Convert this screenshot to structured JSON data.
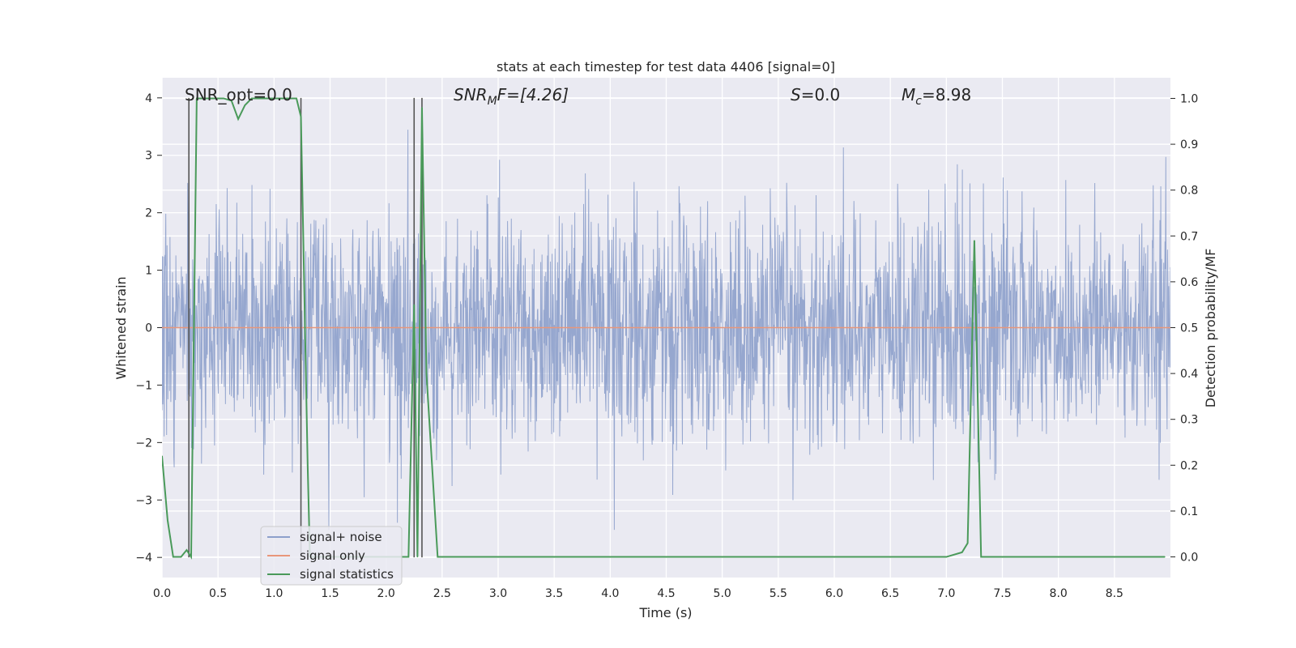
{
  "chart_data": {
    "type": "line",
    "title": "stats at each timestep for test data 4406 [signal=0]",
    "xlabel": "Time (s)",
    "ylabel": "Whitened strain",
    "y2label": "Detection probability/MF",
    "xlim": [
      0.0,
      9.0
    ],
    "ylim": [
      -4.35,
      4.35
    ],
    "y2lim": [
      -0.045,
      1.045
    ],
    "xticks": [
      0.0,
      0.5,
      1.0,
      1.5,
      2.0,
      2.5,
      3.0,
      3.5,
      4.0,
      4.5,
      5.0,
      5.5,
      6.0,
      6.5,
      7.0,
      7.5,
      8.0,
      8.5
    ],
    "xtick_labels": [
      "0.0",
      "0.5",
      "1.0",
      "1.5",
      "2.0",
      "2.5",
      "3.0",
      "3.5",
      "4.0",
      "4.5",
      "5.0",
      "5.5",
      "6.0",
      "6.5",
      "7.0",
      "7.5",
      "8.0",
      "8.5"
    ],
    "yticks": [
      -4,
      -3,
      -2,
      -1,
      0,
      1,
      2,
      3,
      4
    ],
    "ytick_labels": [
      "−4",
      "−3",
      "−2",
      "−1",
      "0",
      "1",
      "2",
      "3",
      "4"
    ],
    "y2ticks": [
      0.0,
      0.1,
      0.2,
      0.3,
      0.4,
      0.5,
      0.6,
      0.7,
      0.8,
      0.9,
      1.0
    ],
    "y2tick_labels": [
      "0.0",
      "0.1",
      "0.2",
      "0.3",
      "0.4",
      "0.5",
      "0.6",
      "0.7",
      "0.8",
      "0.9",
      "1.0"
    ],
    "grid": true,
    "legend_position": "lower-left",
    "annotations": {
      "snr_opt": "SNR_opt=0.0",
      "snr_mf_sym": "SNR",
      "snr_mf_sub": "M",
      "snr_mf_rest": "F=[4.26]",
      "s_sym": "S",
      "s_rest": "=0.0",
      "mc_sym": "M",
      "mc_sub": "c",
      "mc_rest": "=8.98"
    },
    "series": [
      {
        "name": "signal+ noise",
        "color": "#8da0cb",
        "style": "dense noise, |amplitude| mostly within 2, peaks up to about 4",
        "noise_std": 1.0,
        "noise_peak": 4.0,
        "t_range": [
          0.0,
          9.0
        ]
      },
      {
        "name": "signal only",
        "color": "#e8967a",
        "x": [
          0.0,
          9.0
        ],
        "y": [
          0.0,
          0.0
        ]
      },
      {
        "name": "signal statistics",
        "color": "#4a9a5a",
        "axis": "right",
        "x": [
          0.0,
          0.05,
          0.1,
          0.17,
          0.22,
          0.26,
          0.31,
          0.45,
          0.55,
          0.62,
          0.68,
          0.74,
          0.8,
          0.95,
          1.05,
          1.1,
          1.2,
          1.24,
          1.3,
          1.32,
          1.4,
          2.0,
          2.2,
          2.25,
          2.28,
          2.32,
          2.36,
          2.46,
          2.7,
          3.0,
          4.0,
          5.0,
          6.0,
          7.0,
          7.14,
          7.19,
          7.25,
          7.31,
          7.38,
          7.7,
          8.0,
          8.95
        ],
        "y": [
          0.22,
          0.08,
          0.0,
          0.0,
          0.015,
          0.0,
          1.0,
          1.0,
          1.0,
          0.995,
          0.955,
          0.985,
          1.0,
          1.0,
          1.0,
          1.0,
          1.0,
          0.96,
          0.2,
          0.0,
          0.0,
          0.0,
          0.0,
          0.55,
          0.0,
          0.98,
          0.4,
          0.0,
          0.0,
          0.0,
          0.0,
          0.0,
          0.0,
          0.0,
          0.01,
          0.03,
          0.69,
          0.0,
          0.0,
          0.0,
          0.0,
          0.0
        ]
      }
    ],
    "vertical_markers": [
      0.24,
      1.24,
      2.25,
      2.32
    ]
  }
}
